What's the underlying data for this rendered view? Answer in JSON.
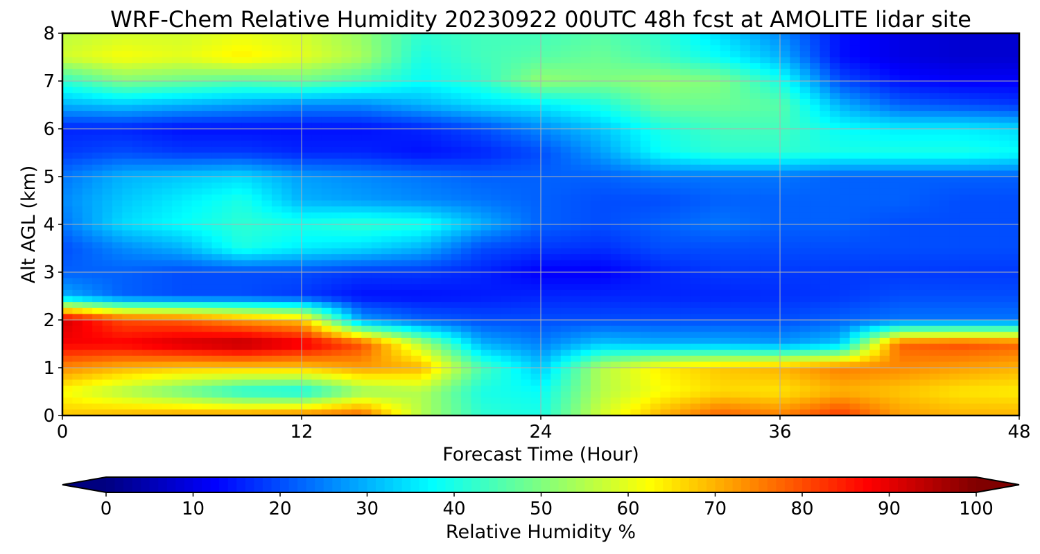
{
  "chart_data": {
    "type": "heatmap",
    "title": "WRF-Chem Relative Humidity 20230922 00UTC 48h fcst at AMOLITE lidar site",
    "xlabel": "Forecast Time (Hour)",
    "ylabel": "Alt AGL (km)",
    "xlim": [
      0,
      48
    ],
    "ylim": [
      0,
      8
    ],
    "xticks": [
      "0",
      "12",
      "24",
      "36",
      "48"
    ],
    "yticks": [
      "0",
      "1",
      "2",
      "3",
      "4",
      "5",
      "6",
      "7",
      "8"
    ],
    "grid": true,
    "colormap": "jet",
    "colorbar": {
      "label": "Relative Humidity %",
      "range": [
        0,
        100
      ],
      "ticks": [
        "0",
        "10",
        "20",
        "30",
        "40",
        "50",
        "60",
        "70",
        "80",
        "90",
        "100"
      ],
      "extend": "both",
      "orientation": "horizontal"
    },
    "x": [
      0,
      3,
      6,
      9,
      12,
      15,
      18,
      21,
      24,
      27,
      30,
      33,
      36,
      39,
      42,
      45,
      48
    ],
    "y": [
      0,
      0.5,
      1,
      1.5,
      2,
      2.5,
      3,
      3.5,
      4,
      4.5,
      5,
      5.5,
      6,
      6.5,
      7,
      7.5,
      8
    ],
    "z": [
      [
        68,
        70,
        72,
        73,
        75,
        78,
        55,
        42,
        40,
        58,
        70,
        78,
        75,
        82,
        72,
        70,
        70
      ],
      [
        62,
        55,
        48,
        40,
        38,
        52,
        55,
        40,
        38,
        55,
        62,
        66,
        65,
        70,
        68,
        65,
        64
      ],
      [
        74,
        70,
        68,
        68,
        68,
        72,
        70,
        45,
        32,
        55,
        64,
        68,
        70,
        75,
        74,
        72,
        70
      ],
      [
        88,
        88,
        92,
        95,
        90,
        80,
        55,
        30,
        25,
        32,
        30,
        30,
        28,
        32,
        78,
        80,
        78
      ],
      [
        92,
        80,
        78,
        72,
        68,
        28,
        22,
        20,
        20,
        20,
        20,
        20,
        20,
        22,
        24,
        24,
        24
      ],
      [
        30,
        22,
        20,
        20,
        18,
        14,
        14,
        15,
        16,
        16,
        16,
        16,
        17,
        18,
        20,
        20,
        20
      ],
      [
        22,
        22,
        20,
        20,
        20,
        18,
        18,
        16,
        12,
        12,
        16,
        18,
        18,
        18,
        18,
        18,
        18
      ],
      [
        20,
        26,
        30,
        40,
        36,
        34,
        30,
        20,
        18,
        17,
        20,
        20,
        20,
        20,
        20,
        20,
        20
      ],
      [
        24,
        34,
        38,
        42,
        40,
        42,
        40,
        30,
        22,
        20,
        22,
        24,
        22,
        22,
        20,
        20,
        20
      ],
      [
        26,
        32,
        36,
        40,
        30,
        28,
        26,
        24,
        22,
        20,
        20,
        22,
        22,
        22,
        22,
        20,
        20
      ],
      [
        24,
        30,
        32,
        34,
        28,
        26,
        24,
        22,
        22,
        22,
        24,
        24,
        24,
        22,
        22,
        22,
        22
      ],
      [
        18,
        20,
        18,
        18,
        16,
        16,
        14,
        16,
        20,
        28,
        38,
        42,
        42,
        40,
        40,
        40,
        38
      ],
      [
        16,
        16,
        14,
        14,
        14,
        14,
        16,
        20,
        26,
        32,
        40,
        44,
        44,
        38,
        36,
        36,
        34
      ],
      [
        30,
        32,
        30,
        28,
        26,
        26,
        30,
        34,
        36,
        40,
        48,
        48,
        46,
        30,
        22,
        20,
        18
      ],
      [
        42,
        50,
        48,
        46,
        48,
        44,
        38,
        42,
        52,
        50,
        52,
        50,
        40,
        20,
        14,
        12,
        12
      ],
      [
        58,
        62,
        60,
        64,
        60,
        54,
        40,
        44,
        46,
        48,
        44,
        38,
        30,
        14,
        10,
        8,
        8
      ],
      [
        56,
        58,
        58,
        60,
        58,
        52,
        42,
        44,
        44,
        46,
        42,
        34,
        26,
        14,
        10,
        8,
        8
      ]
    ]
  }
}
